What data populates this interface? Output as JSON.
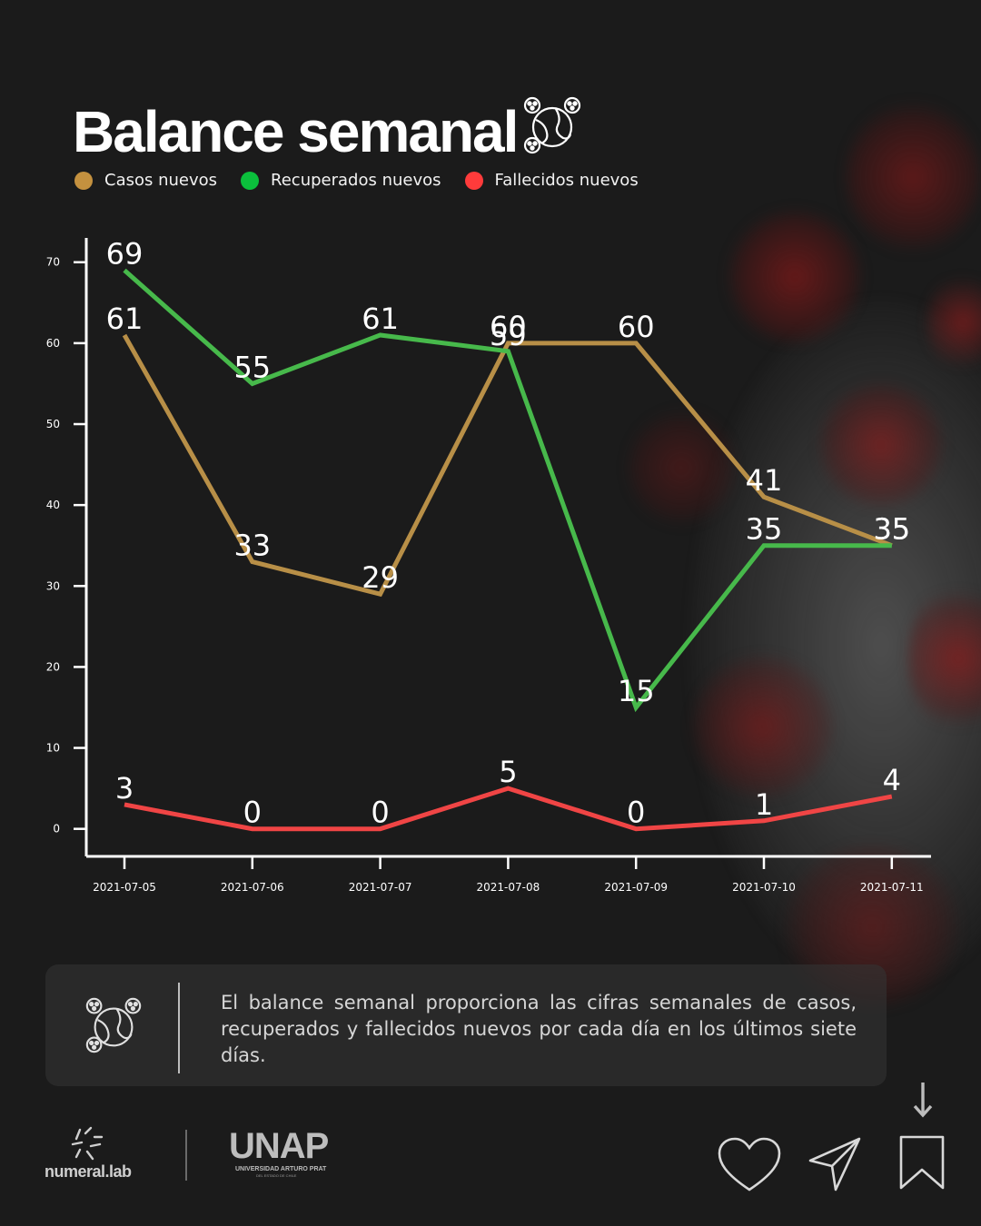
{
  "title": "Balance semanal",
  "legend": [
    {
      "label": "Casos nuevos",
      "color": "#c4913f"
    },
    {
      "label": "Recuperados nuevos",
      "color": "#0bbf3c"
    },
    {
      "label": "Fallecidos nuevos",
      "color": "#ff3b3b"
    }
  ],
  "chart_data": {
    "type": "line",
    "x": [
      "2021-07-05",
      "2021-07-06",
      "2021-07-07",
      "2021-07-08",
      "2021-07-09",
      "2021-07-10",
      "2021-07-11"
    ],
    "series": [
      {
        "name": "Casos nuevos",
        "color": "#b88f47",
        "values": [
          61,
          33,
          29,
          60,
          60,
          41,
          35
        ]
      },
      {
        "name": "Recuperados nuevos",
        "color": "#47b94b",
        "values": [
          69,
          55,
          61,
          59,
          15,
          35,
          35
        ]
      },
      {
        "name": "Fallecidos nuevos",
        "color": "#f04545",
        "values": [
          3,
          0,
          0,
          5,
          0,
          1,
          4
        ]
      }
    ],
    "yticks": [
      0,
      10,
      20,
      30,
      40,
      50,
      60,
      70
    ],
    "ylim": [
      -3.4,
      73
    ],
    "grid": false
  },
  "info": {
    "text": "El balance semanal proporciona las cifras semanales de casos, recuperados y fallecidos nuevos por cada día en los últimos siete días."
  },
  "footer": {
    "numeral_label": "numeral.lab",
    "unap_label": "UNAP",
    "unap_sub": "UNIVERSIDAD ARTURO PRAT",
    "unap_sub2": "DEL ESTADO DE CHILE",
    "icons": [
      "heart-icon",
      "send-icon",
      "bookmark-icon",
      "arrow-down-icon"
    ]
  }
}
